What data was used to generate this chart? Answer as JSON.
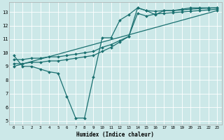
{
  "title": "",
  "xlabel": "Humidex (Indice chaleur)",
  "bg_color": "#cce8e8",
  "line_color": "#1a7070",
  "xlim": [
    -0.5,
    23.5
  ],
  "ylim": [
    4.7,
    13.7
  ],
  "yticks": [
    5,
    6,
    7,
    8,
    9,
    10,
    11,
    12,
    13
  ],
  "xticks": [
    0,
    1,
    2,
    3,
    4,
    5,
    6,
    7,
    8,
    9,
    10,
    11,
    12,
    13,
    14,
    15,
    16,
    17,
    18,
    19,
    20,
    21,
    22,
    23
  ],
  "series1_x": [
    0,
    1,
    2,
    3,
    4,
    5,
    6,
    7,
    8,
    9,
    10,
    11,
    12,
    13,
    14,
    15,
    16,
    17,
    18,
    19,
    20,
    21,
    22,
    23
  ],
  "series1_y": [
    9.8,
    9.0,
    9.0,
    8.8,
    8.6,
    8.5,
    6.8,
    5.2,
    5.2,
    8.2,
    11.1,
    11.1,
    12.4,
    12.8,
    13.3,
    13.1,
    12.8,
    13.1,
    13.1,
    13.2,
    13.3,
    13.3,
    13.3,
    13.3
  ],
  "series2_x": [
    0,
    1,
    2,
    3,
    4,
    5,
    6,
    7,
    8,
    9,
    10,
    11,
    12,
    13,
    14,
    15,
    16,
    17,
    18,
    19,
    20,
    21,
    22,
    23
  ],
  "series2_y": [
    9.5,
    9.5,
    9.6,
    9.6,
    9.7,
    9.7,
    9.8,
    9.9,
    10.0,
    10.1,
    10.4,
    10.6,
    10.9,
    11.2,
    13.3,
    13.1,
    13.05,
    13.1,
    13.1,
    13.15,
    13.2,
    13.25,
    13.28,
    13.3
  ],
  "series3_x": [
    0,
    1,
    2,
    3,
    4,
    5,
    6,
    7,
    8,
    9,
    10,
    11,
    12,
    13,
    14,
    15,
    16,
    17,
    18,
    19,
    20,
    21,
    22,
    23
  ],
  "series3_y": [
    9.2,
    9.2,
    9.3,
    9.3,
    9.4,
    9.4,
    9.5,
    9.6,
    9.7,
    9.8,
    10.1,
    10.4,
    10.8,
    11.2,
    12.9,
    12.7,
    12.85,
    12.9,
    12.95,
    13.0,
    13.05,
    13.1,
    13.15,
    13.2
  ],
  "series4_x": [
    0,
    23
  ],
  "series4_y": [
    9.0,
    13.1
  ]
}
